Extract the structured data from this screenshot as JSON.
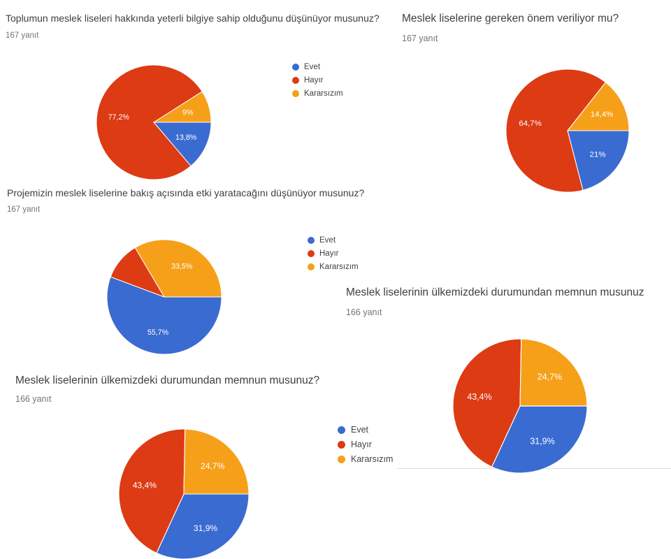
{
  "palette": {
    "evet": "#3a6bd1",
    "hayir": "#dc3b14",
    "kararsizim": "#f6a01a"
  },
  "slice_keys": [
    "evet",
    "hayir",
    "kararsizim"
  ],
  "chart_data": [
    {
      "type": "pie",
      "title": "Toplumun meslek liseleri hakkında yeterli bilgiye sahip olduğunu düşünüyor musunuz?",
      "subtitle": "167 yanıt",
      "categories": [
        "Evet",
        "Hayır",
        "Kararsızım"
      ],
      "values": [
        13.8,
        77.2,
        9
      ],
      "slice_labels": [
        "13,8%",
        "77,2%",
        "9%"
      ],
      "colors": [
        "#3a6bd1",
        "#dc3b14",
        "#f6a01a"
      ],
      "start_angle_deg": 90,
      "direction": "clockwise",
      "legend_position": "right",
      "legend_visible": true
    },
    {
      "type": "pie",
      "title": "Meslek liselerine gereken önem veriliyor mu?",
      "subtitle": "167 yanıt",
      "categories": [
        "Evet",
        "Hayır",
        "Kararsızım"
      ],
      "values": [
        21,
        64.7,
        14.4
      ],
      "slice_labels": [
        "21%",
        "64,7%",
        "14,4%"
      ],
      "colors": [
        "#3a6bd1",
        "#dc3b14",
        "#f6a01a"
      ],
      "start_angle_deg": 90,
      "direction": "clockwise",
      "legend_position": "right",
      "legend_visible": false
    },
    {
      "type": "pie",
      "title": "Projemizin meslek liselerine bakış açısında etki yaratacağını düşünüyor musunuz?",
      "subtitle": "167 yanıt",
      "categories": [
        "Evet",
        "Hayır",
        "Kararsızım"
      ],
      "values": [
        55.7,
        10.8,
        33.5
      ],
      "slice_labels": [
        "55,7%",
        "",
        "33,5%"
      ],
      "colors": [
        "#3a6bd1",
        "#dc3b14",
        "#f6a01a"
      ],
      "start_angle_deg": 90,
      "direction": "clockwise",
      "legend_position": "right",
      "legend_visible": true
    },
    {
      "type": "pie",
      "title": "Meslek liselerinin ülkemizdeki durumundan memnun musunuz",
      "subtitle": "166 yanıt",
      "categories": [
        "Evet",
        "Hayır",
        "Kararsızım"
      ],
      "values": [
        31.9,
        43.4,
        24.7
      ],
      "slice_labels": [
        "31,9%",
        "43,4%",
        "24,7%"
      ],
      "colors": [
        "#3a6bd1",
        "#dc3b14",
        "#f6a01a"
      ],
      "start_angle_deg": 90,
      "direction": "clockwise",
      "legend_position": "right",
      "legend_visible": false
    },
    {
      "type": "pie",
      "title": "Meslek liselerinin ülkemizdeki durumundan memnun musunuz?",
      "subtitle": "166 yanıt",
      "categories": [
        "Evet",
        "Hayır",
        "Kararsızım"
      ],
      "values": [
        31.9,
        43.4,
        24.7
      ],
      "slice_labels": [
        "31,9%",
        "43,4%",
        "24,7%"
      ],
      "colors": [
        "#3a6bd1",
        "#dc3b14",
        "#f6a01a"
      ],
      "start_angle_deg": 90,
      "direction": "clockwise",
      "legend_position": "right",
      "legend_visible": true
    }
  ]
}
